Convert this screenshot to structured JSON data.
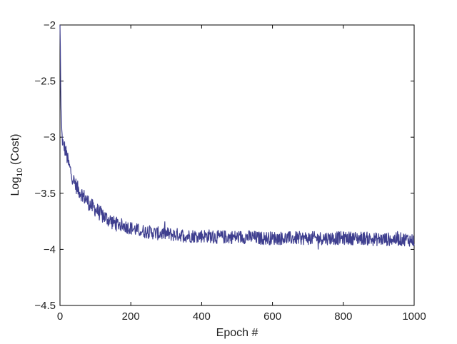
{
  "chart_data": {
    "type": "line",
    "title": "",
    "xlabel": "Epoch #",
    "ylabel": {
      "prefix": "Log",
      "subscript": "10",
      "suffix": " (Cost)"
    },
    "xlim": [
      0,
      1000
    ],
    "ylim": [
      -4.5,
      -2
    ],
    "xticks": [
      0,
      200,
      400,
      600,
      800,
      1000
    ],
    "yticks": [
      -2,
      -2.5,
      -3,
      -3.5,
      -4,
      -4.5
    ],
    "xtick_labels": [
      "0",
      "200",
      "400",
      "600",
      "800",
      "1000"
    ],
    "ytick_labels": [
      "−2",
      "−2.5",
      "−3",
      "−3.5",
      "−4",
      "−4.5"
    ],
    "grid": false,
    "line_color": "#3f3f8f",
    "series": [
      {
        "x": [
          0,
          1,
          2,
          3,
          4,
          5,
          6,
          8,
          10,
          12,
          15,
          18,
          20,
          25,
          30,
          35,
          40,
          45,
          50,
          60,
          70,
          80,
          90,
          100,
          110,
          120,
          130,
          140,
          150,
          160,
          170,
          180,
          190,
          200,
          220,
          240,
          260,
          280,
          300,
          320,
          340,
          360,
          380,
          400,
          420,
          440,
          460,
          480,
          500,
          520,
          540,
          560,
          580,
          600,
          620,
          640,
          660,
          680,
          700,
          720,
          740,
          760,
          780,
          800,
          820,
          840,
          860,
          880,
          900,
          920,
          940,
          960,
          980,
          1000
        ],
        "values": [
          -2.0,
          -2.2,
          -2.55,
          -2.75,
          -2.85,
          -2.95,
          -3.0,
          -3.05,
          -3.1,
          -3.08,
          -3.12,
          -3.15,
          -3.18,
          -3.25,
          -3.3,
          -3.35,
          -3.4,
          -3.43,
          -3.46,
          -3.5,
          -3.54,
          -3.58,
          -3.62,
          -3.64,
          -3.67,
          -3.7,
          -3.72,
          -3.74,
          -3.76,
          -3.77,
          -3.78,
          -3.79,
          -3.8,
          -3.81,
          -3.83,
          -3.84,
          -3.85,
          -3.86,
          -3.86,
          -3.87,
          -3.87,
          -3.88,
          -3.88,
          -3.88,
          -3.88,
          -3.89,
          -3.89,
          -3.89,
          -3.89,
          -3.89,
          -3.89,
          -3.9,
          -3.9,
          -3.9,
          -3.9,
          -3.9,
          -3.9,
          -3.9,
          -3.9,
          -3.9,
          -3.9,
          -3.9,
          -3.9,
          -3.9,
          -3.9,
          -3.9,
          -3.9,
          -3.91,
          -3.91,
          -3.91,
          -3.91,
          -3.91,
          -3.91,
          -3.92
        ]
      }
    ]
  }
}
